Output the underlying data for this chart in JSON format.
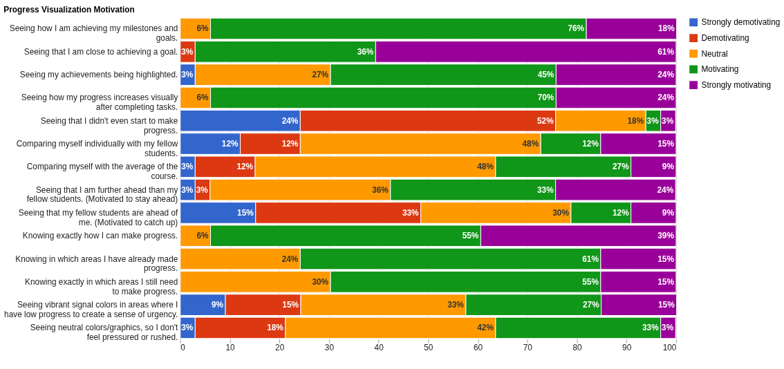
{
  "chart_data": {
    "type": "bar",
    "orientation": "horizontal",
    "stacked": true,
    "title": "Progress Visualization Motivation",
    "categories": [
      "Seeing how I am achieving my milestones and goals.",
      "Seeing that I am close to achieving a goal.",
      "Seeing my achievements being highlighted.",
      "Seeing how my progress increases visually after completing tasks.",
      "Seeing that I didn't even start to make progress.",
      "Comparing myself individually with my fellow students.",
      "Comparing myself with the average of the course.",
      "Seeing that I am further ahead than my fellow students. (Motivated to stay ahead)",
      "Seeing that my fellow students are ahead of me. (Motivated to catch up)",
      "Knowing exactly how I can make progress.",
      "Knowing in which areas I have already made progress.",
      "Knowing exactly in which areas I still need to make progress.",
      "Seeing vibrant signal colors in areas where I have low progress to create a sense of urgency.",
      "Seeing neutral colors/graphics, so I don't feel pressured or rushed."
    ],
    "series": [
      {
        "name": "Strongly demotivating",
        "color": "#3366cc",
        "values": [
          null,
          null,
          3.0,
          null,
          24.2,
          12.1,
          3.0,
          3.0,
          15.2,
          null,
          null,
          null,
          9.1,
          3.0
        ],
        "value_labels": [
          null,
          null,
          "3%",
          null,
          "24%",
          "12%",
          "3%",
          "3%",
          "15%",
          null,
          null,
          null,
          "9%",
          "3%"
        ]
      },
      {
        "name": "Demotivating",
        "color": "#dc3912",
        "values": [
          null,
          3.0,
          null,
          null,
          51.5,
          12.1,
          12.1,
          3.0,
          33.3,
          null,
          null,
          null,
          15.2,
          18.2
        ],
        "value_labels": [
          null,
          "3%",
          null,
          null,
          "52%",
          "12%",
          "12%",
          "3%",
          "33%",
          null,
          null,
          null,
          "15%",
          "18%"
        ]
      },
      {
        "name": "Neutral",
        "color": "#ff9900",
        "values": [
          6.1,
          null,
          27.3,
          6.1,
          18.2,
          48.5,
          48.5,
          36.4,
          30.3,
          6.1,
          24.2,
          30.3,
          33.3,
          42.4
        ],
        "value_labels": [
          "6%",
          null,
          "27%",
          "6%",
          "18%",
          "48%",
          "48%",
          "36%",
          "30%",
          "6%",
          "24%",
          "30%",
          "33%",
          "42%"
        ]
      },
      {
        "name": "Motivating",
        "color": "#109618",
        "values": [
          75.8,
          36.4,
          45.5,
          69.7,
          3.0,
          12.1,
          27.3,
          33.3,
          12.1,
          54.5,
          60.6,
          54.5,
          27.3,
          33.3
        ],
        "value_labels": [
          "76%",
          "36%",
          "45%",
          "70%",
          "3%",
          "12%",
          "27%",
          "33%",
          "12%",
          "55%",
          "61%",
          "55%",
          "27%",
          "33%"
        ]
      },
      {
        "name": "Strongly motivating",
        "color": "#990099",
        "values": [
          18.2,
          60.6,
          24.2,
          24.2,
          3.0,
          15.2,
          9.1,
          24.2,
          9.1,
          39.4,
          15.2,
          15.2,
          15.2,
          3.0
        ],
        "value_labels": [
          "18%",
          "61%",
          "24%",
          "24%",
          "3%",
          "15%",
          "9%",
          "24%",
          "9%",
          "39%",
          "15%",
          "15%",
          "15%",
          "3%"
        ]
      }
    ],
    "xlim": [
      0,
      100
    ],
    "xticks": [
      0,
      10,
      20,
      30,
      40,
      50,
      60,
      70,
      80,
      90,
      100
    ],
    "grid": "x",
    "legend": "top right"
  }
}
